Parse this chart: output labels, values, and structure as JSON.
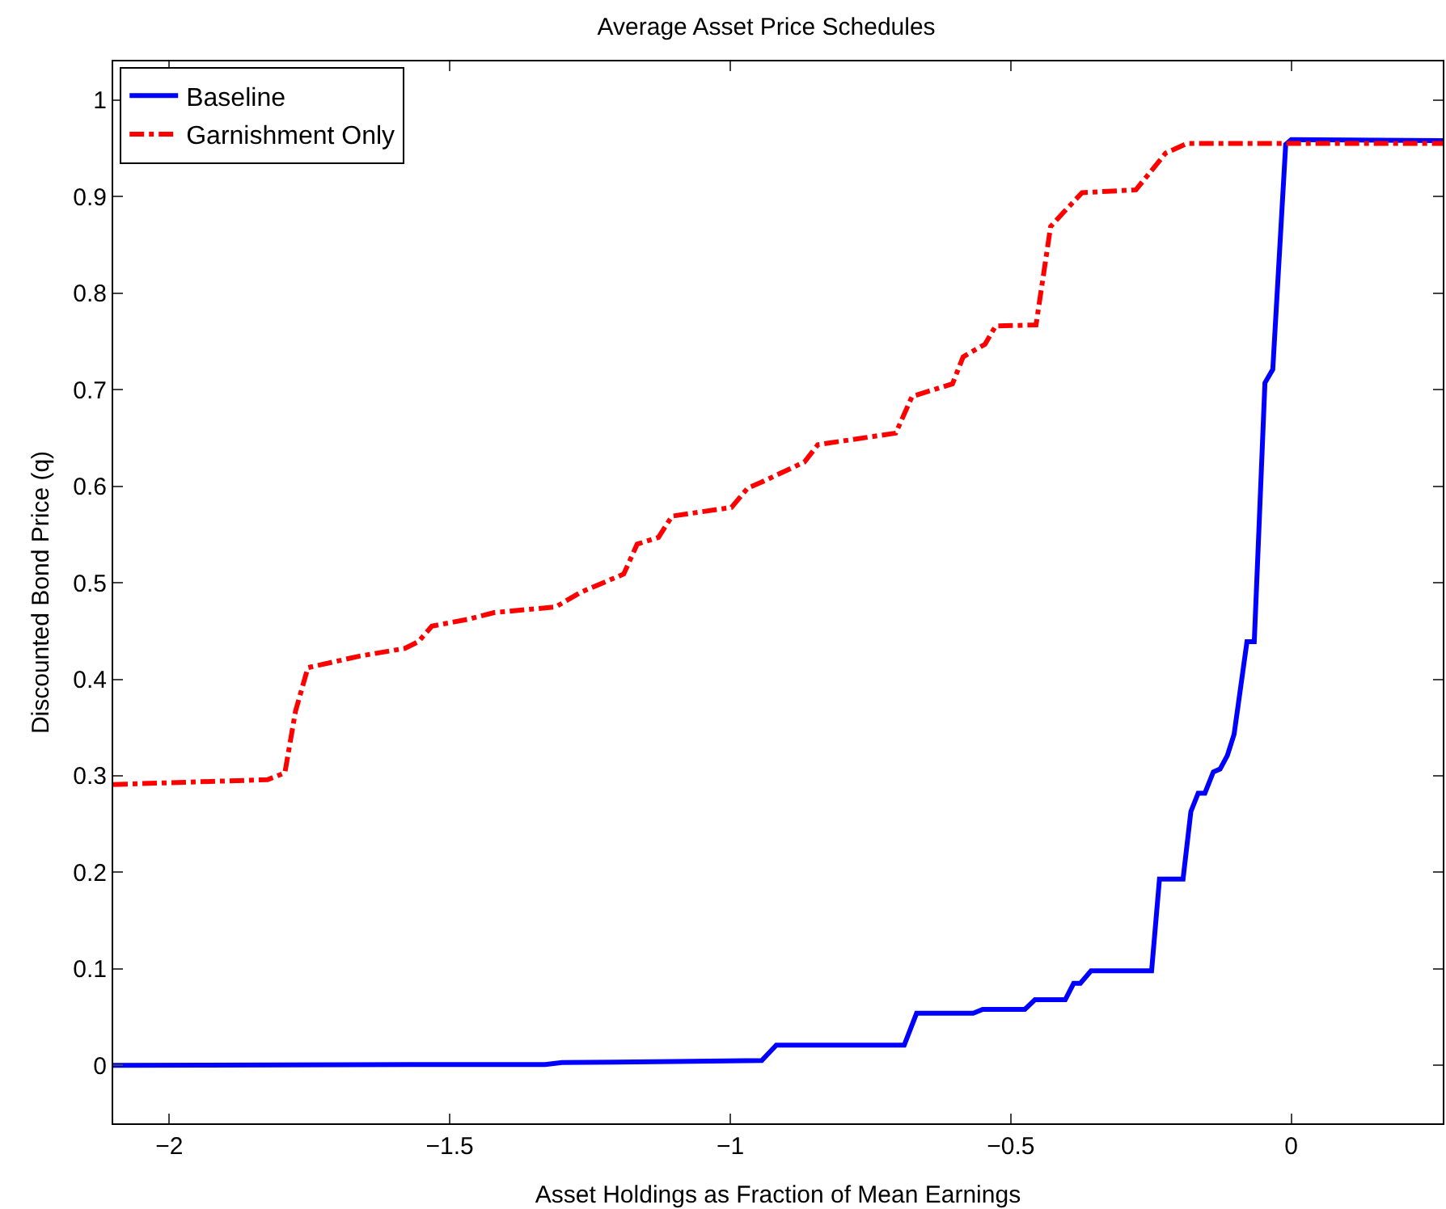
{
  "chart_data": {
    "type": "line",
    "title": "Average Asset Price Schedules",
    "xlabel": "Asset Holdings as Fraction of Mean Earnings",
    "ylabel": "Discounted Bond Price (q)",
    "xlim": [
      -2.1,
      0.27
    ],
    "xticks": [
      {
        "value": -2,
        "label": "−2"
      },
      {
        "value": -1.5,
        "label": "−1.5"
      },
      {
        "value": -1,
        "label": "−1"
      },
      {
        "value": -0.5,
        "label": "−0.5"
      },
      0
    ],
    "ylim": [
      -0.06,
      1.04
    ],
    "yticks": [
      0,
      0.1,
      0.2,
      0.3,
      0.4,
      0.5,
      0.6,
      0.7,
      0.8,
      0.9,
      1
    ],
    "grid": false,
    "legend": "top left",
    "marker": "none",
    "series": [
      {
        "name": "Baseline",
        "color": "#0000ff",
        "line_style": "solid",
        "x": [
          -2.1,
          -1.5,
          -1.33,
          -1.3,
          -1.1,
          -0.944,
          -0.918,
          -0.69,
          -0.668,
          -0.567,
          -0.55,
          -0.475,
          -0.457,
          -0.403,
          -0.388,
          -0.376,
          -0.357,
          -0.249,
          -0.235,
          -0.193,
          -0.179,
          -0.166,
          -0.154,
          -0.139,
          -0.127,
          -0.114,
          -0.102,
          -0.095,
          -0.079,
          -0.066,
          -0.058,
          -0.047,
          -0.033,
          -0.01,
          0,
          0.27
        ],
        "values": [
          0,
          0.001,
          0.001,
          0.003,
          0.004,
          0.005,
          0.021,
          0.021,
          0.054,
          0.054,
          0.058,
          0.058,
          0.068,
          0.068,
          0.085,
          0.085,
          0.098,
          0.098,
          0.193,
          0.193,
          0.263,
          0.282,
          0.282,
          0.304,
          0.307,
          0.321,
          0.343,
          0.372,
          0.439,
          0.439,
          0.551,
          0.707,
          0.721,
          0.954,
          0.959,
          0.958
        ]
      },
      {
        "name": "Garnishment Only",
        "color": "#ff0000",
        "line_style": "dashdot",
        "x": [
          -2.1,
          -1.825,
          -1.794,
          -1.775,
          -1.753,
          -1.661,
          -1.58,
          -1.556,
          -1.532,
          -1.469,
          -1.421,
          -1.311,
          -1.267,
          -1.19,
          -1.166,
          -1.128,
          -1.104,
          -0.998,
          -0.969,
          -0.945,
          -0.868,
          -0.844,
          -0.705,
          -0.676,
          -0.604,
          -0.585,
          -0.546,
          -0.527,
          -0.455,
          -0.429,
          -0.407,
          -0.373,
          -0.277,
          -0.224,
          -0.186,
          0.27
        ],
        "values": [
          0.291,
          0.296,
          0.303,
          0.367,
          0.412,
          0.424,
          0.432,
          0.439,
          0.455,
          0.462,
          0.469,
          0.475,
          0.49,
          0.509,
          0.54,
          0.547,
          0.569,
          0.578,
          0.598,
          0.604,
          0.625,
          0.643,
          0.655,
          0.693,
          0.706,
          0.734,
          0.747,
          0.766,
          0.767,
          0.869,
          0.883,
          0.904,
          0.907,
          0.945,
          0.955,
          0.955
        ]
      }
    ]
  }
}
